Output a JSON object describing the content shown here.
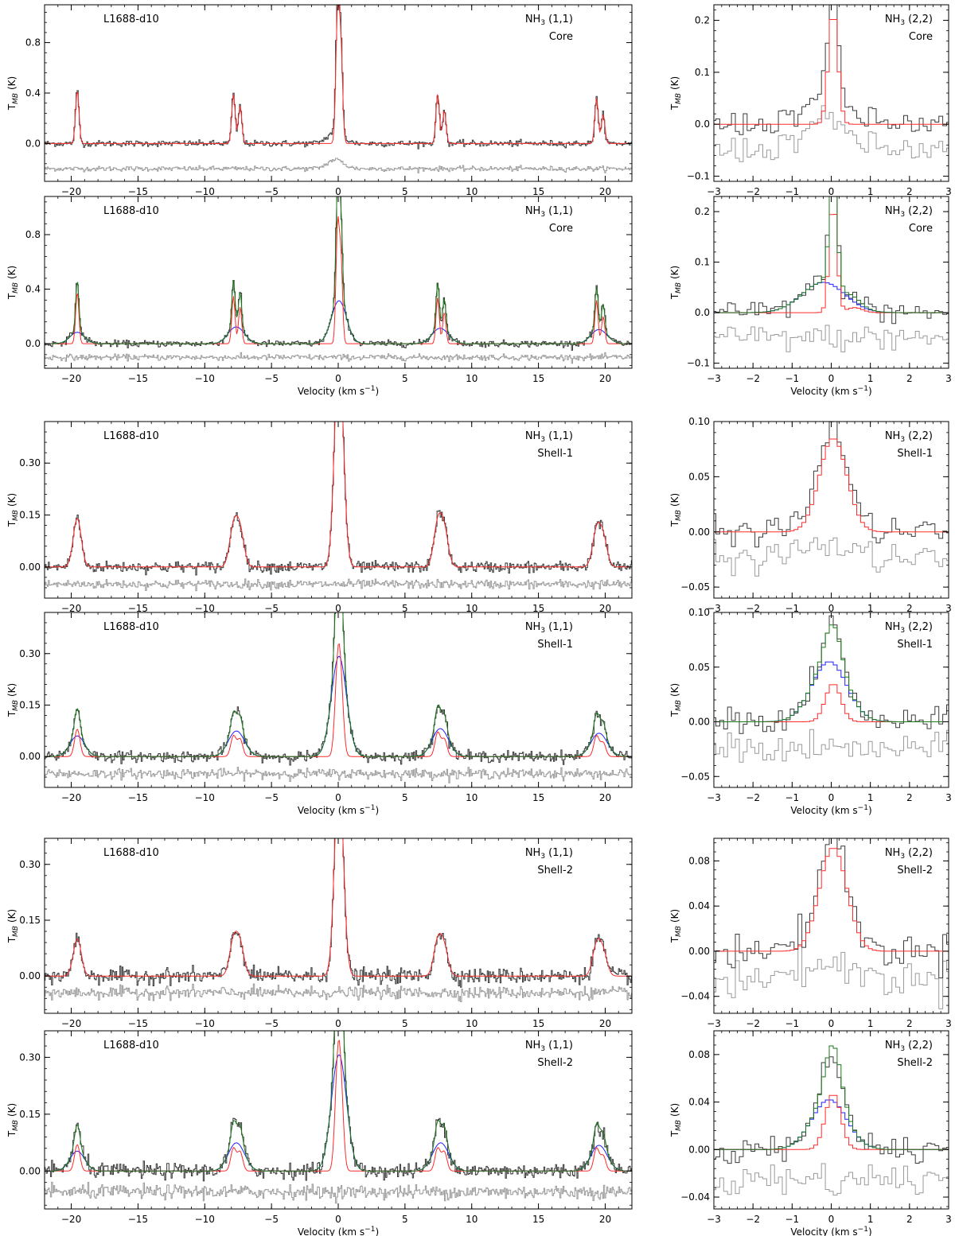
{
  "figure": {
    "source_label": "L1688-d10",
    "ylabel": "T_MB (K)",
    "xlabel_main": "Velocity (km s",
    "xlabel_exp": "−1",
    "xlabel_close": ")",
    "colors": {
      "observed": "#3a3a3a",
      "fit_narrow": "#ff2a2a",
      "fit_broad": "#2020ff",
      "fit_total": "#1a7a1a",
      "residual": "#9a9a9a"
    }
  },
  "chart_data": [
    {
      "type": "line",
      "panel": "core-11-single",
      "region": "Core",
      "line": "NH3 (1,1)",
      "show_source": true,
      "xlim": [
        -22,
        22
      ],
      "ylim": [
        -0.3,
        1.1
      ],
      "yticks": [
        0.0,
        0.4,
        0.8
      ],
      "yfmt": 1,
      "xticks": [
        -20,
        -15,
        -10,
        -5,
        0,
        5,
        10,
        15,
        20
      ],
      "show_xticklabels": true,
      "show_xlabel": false,
      "components": "single",
      "comp_peaks": {
        "narrow": [
          0.42,
          0.39,
          0.3,
          1.0,
          0.72,
          0.39,
          0.26,
          0.36,
          0.23
        ]
      },
      "residual_offset": -0.2,
      "noise": 0.012
    },
    {
      "type": "line",
      "panel": "core-11-two",
      "region": "Core",
      "line": "NH3 (1,1)",
      "show_source": true,
      "xlim": [
        -22,
        22
      ],
      "ylim": [
        -0.18,
        1.08
      ],
      "yticks": [
        0.0,
        0.4,
        0.8
      ],
      "yfmt": 1,
      "xticks": [
        -20,
        -15,
        -10,
        -5,
        0,
        5,
        10,
        15,
        20
      ],
      "show_xticklabels": true,
      "show_xlabel": true,
      "components": "two",
      "broad_scale": 0.2,
      "comp_peaks": {
        "narrow": [
          0.38,
          0.35,
          0.27,
          0.85,
          0.62,
          0.34,
          0.23,
          0.32,
          0.2
        ]
      },
      "residual_offset": -0.1,
      "noise": 0.012
    },
    {
      "type": "line",
      "panel": "core-22-single",
      "region": "Core",
      "line": "NH3 (2,2)",
      "show_source": false,
      "xlim": [
        -3,
        3
      ],
      "ylim": [
        -0.11,
        0.23
      ],
      "yticks": [
        -0.1,
        0.0,
        0.1,
        0.2
      ],
      "yfmt": 1,
      "xticks": [
        -3,
        -2,
        -1,
        0,
        1,
        2,
        3
      ],
      "show_xticklabels": true,
      "show_xlabel": false,
      "components": "single",
      "peak": 0.22,
      "residual_offset": -0.05,
      "noise": 0.012
    },
    {
      "type": "line",
      "panel": "core-22-two",
      "region": "Core",
      "line": "NH3 (2,2)",
      "show_source": false,
      "xlim": [
        -3,
        3
      ],
      "ylim": [
        -0.11,
        0.23
      ],
      "yticks": [
        -0.1,
        0.0,
        0.1,
        0.2
      ],
      "yfmt": 1,
      "xticks": [
        -3,
        -2,
        -1,
        0,
        1,
        2,
        3
      ],
      "show_xticklabels": true,
      "show_xlabel": true,
      "components": "two",
      "peak": 0.22,
      "broad_peak": 0.06,
      "residual_offset": -0.05,
      "noise": 0.012
    },
    {
      "type": "line",
      "panel": "shell1-11-single",
      "region": "Shell-1",
      "line": "NH3 (1,1)",
      "show_source": true,
      "xlim": [
        -22,
        22
      ],
      "ylim": [
        -0.09,
        0.42
      ],
      "yticks": [
        0.0,
        0.15,
        0.3
      ],
      "yfmt": 2,
      "xticks": [
        -20,
        -15,
        -10,
        -5,
        0,
        5,
        10,
        15,
        20
      ],
      "show_xticklabels": true,
      "show_xlabel": false,
      "components": "single",
      "comp_peaks": {
        "narrow": [
          0.14,
          0.11,
          0.1,
          0.39,
          0.3,
          0.12,
          0.1,
          0.1,
          0.08
        ]
      },
      "residual_offset": -0.05,
      "noise": 0.008
    },
    {
      "type": "line",
      "panel": "shell1-11-two",
      "region": "Shell-1",
      "line": "NH3 (1,1)",
      "show_source": true,
      "xlim": [
        -22,
        22
      ],
      "ylim": [
        -0.09,
        0.42
      ],
      "yticks": [
        0.0,
        0.15,
        0.3
      ],
      "yfmt": 2,
      "xticks": [
        -20,
        -15,
        -10,
        -5,
        0,
        5,
        10,
        15,
        20
      ],
      "show_xticklabels": true,
      "show_xlabel": true,
      "components": "two",
      "broad_scale": 0.42,
      "comp_peaks": {
        "narrow": [
          0.08,
          0.06,
          0.05,
          0.23,
          0.17,
          0.07,
          0.05,
          0.06,
          0.04
        ]
      },
      "residual_offset": -0.05,
      "noise": 0.008
    },
    {
      "type": "line",
      "panel": "shell1-22-single",
      "region": "Shell-1",
      "line": "NH3 (2,2)",
      "show_source": false,
      "xlim": [
        -3,
        3
      ],
      "ylim": [
        -0.06,
        0.1
      ],
      "yticks": [
        -0.05,
        0.0,
        0.05,
        0.1
      ],
      "yfmt": 2,
      "xticks": [
        -3,
        -2,
        -1,
        0,
        1,
        2,
        3
      ],
      "show_xticklabels": true,
      "show_xlabel": false,
      "components": "single",
      "peak": 0.085,
      "residual_offset": -0.025,
      "noise": 0.006
    },
    {
      "type": "line",
      "panel": "shell1-22-two",
      "region": "Shell-1",
      "line": "NH3 (2,2)",
      "show_source": false,
      "xlim": [
        -3,
        3
      ],
      "ylim": [
        -0.06,
        0.1
      ],
      "yticks": [
        -0.05,
        0.0,
        0.05,
        0.1
      ],
      "yfmt": 2,
      "xticks": [
        -3,
        -2,
        -1,
        0,
        1,
        2,
        3
      ],
      "show_xticklabels": true,
      "show_xlabel": true,
      "components": "two",
      "peak": 0.035,
      "broad_peak": 0.055,
      "residual_offset": -0.025,
      "noise": 0.006
    },
    {
      "type": "line",
      "panel": "shell2-11-single",
      "region": "Shell-2",
      "line": "NH3 (1,1)",
      "show_source": true,
      "xlim": [
        -22,
        22
      ],
      "ylim": [
        -0.1,
        0.37
      ],
      "yticks": [
        0.0,
        0.15,
        0.3
      ],
      "yfmt": 2,
      "xticks": [
        -20,
        -15,
        -10,
        -5,
        0,
        5,
        10,
        15,
        20
      ],
      "show_xticklabels": true,
      "show_xlabel": false,
      "components": "single",
      "comp_peaks": {
        "narrow": [
          0.1,
          0.09,
          0.08,
          0.34,
          0.26,
          0.09,
          0.07,
          0.08,
          0.06
        ]
      },
      "residual_offset": -0.045,
      "noise": 0.01
    },
    {
      "type": "line",
      "panel": "shell2-11-two",
      "region": "Shell-2",
      "line": "NH3 (1,1)",
      "show_source": true,
      "xlim": [
        -22,
        22
      ],
      "ylim": [
        -0.1,
        0.37
      ],
      "yticks": [
        0.0,
        0.15,
        0.3
      ],
      "yfmt": 2,
      "xticks": [
        -20,
        -15,
        -10,
        -5,
        0,
        5,
        10,
        15,
        20
      ],
      "show_xticklabels": true,
      "show_xlabel": true,
      "components": "two",
      "broad_scale": 0.28,
      "comp_peaks": {
        "narrow": [
          0.07,
          0.06,
          0.05,
          0.24,
          0.18,
          0.06,
          0.05,
          0.06,
          0.04
        ]
      },
      "residual_offset": -0.055,
      "noise": 0.01
    },
    {
      "type": "line",
      "panel": "shell2-22-single",
      "region": "Shell-2",
      "line": "NH3 (2,2)",
      "show_source": false,
      "xlim": [
        -3,
        3
      ],
      "ylim": [
        -0.055,
        0.1
      ],
      "yticks": [
        -0.04,
        0.0,
        0.04,
        0.08
      ],
      "yfmt": 2,
      "xticks": [
        -3,
        -2,
        -1,
        0,
        1,
        2,
        3
      ],
      "show_xticklabels": true,
      "show_xlabel": false,
      "components": "single",
      "peak": 0.092,
      "residual_offset": -0.025,
      "noise": 0.007
    },
    {
      "type": "line",
      "panel": "shell2-22-two",
      "region": "Shell-2",
      "line": "NH3 (2,2)",
      "show_source": false,
      "xlim": [
        -3,
        3
      ],
      "ylim": [
        -0.05,
        0.1
      ],
      "yticks": [
        -0.04,
        0.0,
        0.04,
        0.08
      ],
      "yfmt": 2,
      "xticks": [
        -3,
        -2,
        -1,
        0,
        1,
        2,
        3
      ],
      "show_xticklabels": true,
      "show_xlabel": true,
      "components": "two",
      "peak": 0.047,
      "broad_peak": 0.042,
      "residual_offset": -0.025,
      "noise": 0.007
    }
  ]
}
